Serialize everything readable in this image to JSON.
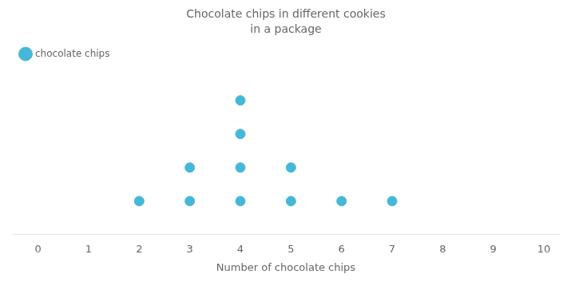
{
  "chart_data": {
    "type": "dot",
    "title": "Chocolate chips in different cookies",
    "subtitle": "in a package",
    "x_label": "Number of chocolate chips",
    "x": [
      2,
      3,
      4,
      5,
      6,
      7
    ],
    "series": [
      {
        "name": "chocolate chips",
        "color": "#45b8d8",
        "values": [
          1,
          2,
          4,
          2,
          1,
          1
        ]
      }
    ],
    "xlim": [
      -0.5,
      10.3
    ],
    "xticks": [
      0,
      1,
      2,
      3,
      4,
      5,
      6,
      7,
      8,
      9,
      10
    ],
    "ylim": [
      0,
      5
    ],
    "tick_labels": "x",
    "grid": false,
    "legend": "upper left",
    "marker": "circle"
  }
}
